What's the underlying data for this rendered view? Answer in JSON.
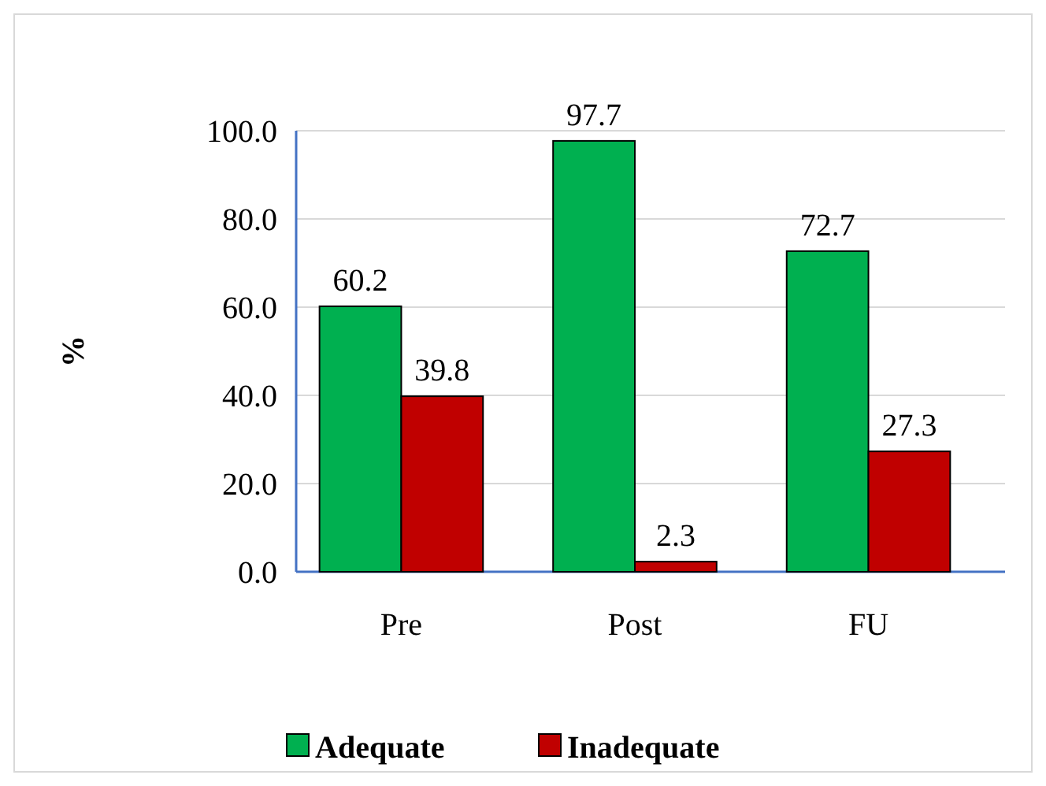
{
  "chart_data": {
    "type": "bar",
    "ylabel": "%",
    "categories": [
      "Pre",
      "Post",
      "FU"
    ],
    "series": [
      {
        "name": "Adequate",
        "color": "#00b050",
        "values": [
          60.2,
          97.7,
          72.7
        ]
      },
      {
        "name": "Inadequate",
        "color": "#c00000",
        "values": [
          39.8,
          2.3,
          27.3
        ]
      }
    ],
    "ylim": [
      0,
      100
    ],
    "yticks": [
      {
        "value": 0,
        "label": "0.0"
      },
      {
        "value": 20,
        "label": "20.0"
      },
      {
        "value": 40,
        "label": "40.0"
      },
      {
        "value": 60,
        "label": "60.0"
      },
      {
        "value": 80,
        "label": "80.0"
      },
      {
        "value": 100,
        "label": "100.0"
      }
    ],
    "grid": "y",
    "legend": "bottom",
    "data_labels": true
  }
}
